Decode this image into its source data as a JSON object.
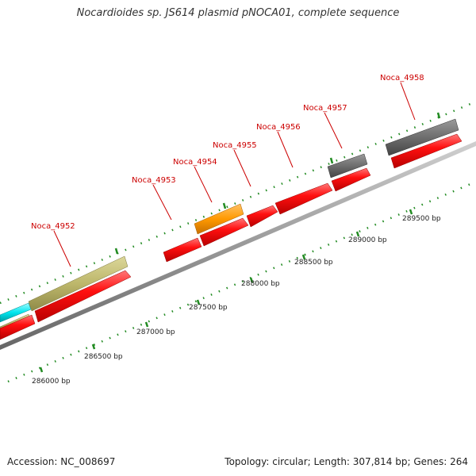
{
  "title": "Nocardioides sp. JS614 plasmid pNOCA01, complete sequence",
  "footer": {
    "accession": "Accession: NC_008697",
    "summary": "Topology: circular; Length: 307,814 bp; Genes: 264"
  },
  "genes": [
    "Noca_4952",
    "Noca_4953",
    "Noca_4954",
    "Noca_4955",
    "Noca_4956",
    "Noca_4957",
    "Noca_4958"
  ],
  "scale_labels": [
    "286000 bp",
    "286500 bp",
    "287000 bp",
    "287500 bp",
    "288000 bp",
    "288500 bp",
    "289000 bp",
    "289500 bp"
  ],
  "colors": {
    "cds": "#ff0000",
    "gene_label": "#cc0000",
    "backbone": "#999999",
    "tick": "#228b22",
    "olive": "#bdb76b",
    "orange": "#ff9900",
    "gray": "#707070",
    "cyan": "#00e5ee"
  }
}
